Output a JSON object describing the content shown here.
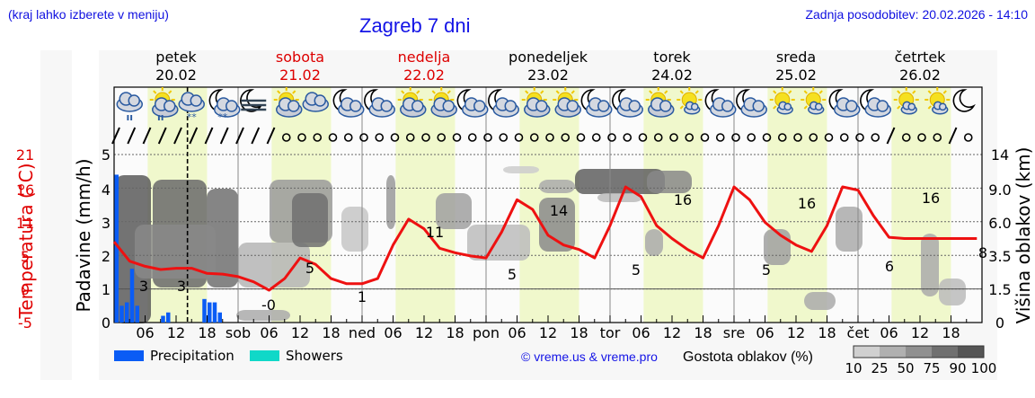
{
  "header": {
    "location_hint": "(kraj lahko izberete v meniju)",
    "title": "Zagreb 7 dni",
    "last_update": "Zadnja posodobitev: 20.02.2026 - 14:10"
  },
  "days": [
    {
      "name": "petek",
      "date": "20.02",
      "abbr": "",
      "weekend": false
    },
    {
      "name": "sobota",
      "date": "21.02",
      "abbr": "sob",
      "weekend": true
    },
    {
      "name": "nedelja",
      "date": "22.02",
      "abbr": "ned",
      "weekend": true
    },
    {
      "name": "ponedeljek",
      "date": "23.02",
      "abbr": "pon",
      "weekend": false
    },
    {
      "name": "torek",
      "date": "24.02",
      "abbr": "tor",
      "weekend": false
    },
    {
      "name": "sreda",
      "date": "25.02",
      "abbr": "sre",
      "weekend": false
    },
    {
      "name": "četrtek",
      "date": "26.02",
      "abbr": "čet",
      "weekend": false
    }
  ],
  "icons_per_day": [
    [
      "cloud-rain-icon",
      "sun-cloud-rain-icon",
      "cloud-snow-icon",
      "moon-cloud-snow-icon"
    ],
    [
      "moon-fog-icon",
      "sun-cloud-icon",
      "cloud-icon",
      "moon-cloud-icon"
    ],
    [
      "moon-cloud-icon",
      "sun-cloud-icon",
      "sun-cloud-icon",
      "moon-cloud-icon"
    ],
    [
      "moon-cloud-icon",
      "sun-cloud-icon",
      "sun-cloud-icon",
      "moon-cloud-icon"
    ],
    [
      "moon-cloud-icon",
      "sun-cloud-icon",
      "sun-small-cloud-icon",
      "moon-cloud-icon"
    ],
    [
      "moon-cloud-icon",
      "sun-small-cloud-icon",
      "sun-small-cloud-icon",
      "moon-cloud-icon"
    ],
    [
      "moon-cloud-icon",
      "sun-small-cloud-icon",
      "sun-small-cloud-icon",
      "moon-icon"
    ]
  ],
  "legend": {
    "precipitation": "Precipitation",
    "showers": "Showers",
    "precipitation_color": "#0a5cf5",
    "showers_color": "#10d8c8",
    "copyright": "© vreme.us & vreme.pro",
    "cloud_density_label": "Gostota oblakov (%)",
    "cloud_scale": [
      "10",
      "25",
      "50",
      "75",
      "90",
      "100"
    ],
    "cloud_colors": [
      "#d0d0d0",
      "#b0b0b0",
      "#909090",
      "#707070",
      "#555555"
    ]
  },
  "colors": {
    "temperature": "#ee1111",
    "daylight": "#f0f8cc",
    "weekend_text": "#dd0000",
    "link_blue": "#1414e6"
  },
  "chart_data": {
    "type": "line",
    "title": "Zagreb 7 dni",
    "xlabel": "",
    "x_tick_labels": [
      "06",
      "12",
      "18",
      "sob",
      "06",
      "12",
      "18",
      "ned",
      "06",
      "12",
      "18",
      "pon",
      "06",
      "12",
      "18",
      "tor",
      "06",
      "12",
      "18",
      "sre",
      "06",
      "12",
      "18",
      "čet",
      "06",
      "12",
      "18"
    ],
    "ylabel_left_outer": "Temperatura (°C)",
    "ylabel_left_inner": "Padavine (mm/h)",
    "ylabel_right": "Višina oblakov (km)",
    "temp_ticks": [
      "21",
      "16",
      "11",
      "5",
      "0",
      "-5"
    ],
    "precip_ticks": [
      "5",
      "4",
      "3",
      "2",
      "1",
      "0"
    ],
    "cloud_height_ticks": [
      "14",
      "9.0",
      "6.0",
      "3.5",
      "1.5",
      "0"
    ],
    "ylim_precip": [
      0,
      5
    ],
    "ylim_temp": [
      -5,
      21
    ],
    "current_time_marker": "20.02 14:10",
    "series": [
      {
        "name": "Temperature",
        "unit": "°C",
        "hours": [
          0,
          3,
          6,
          9,
          12,
          15,
          18,
          21,
          24,
          27,
          30,
          33,
          36,
          39,
          42,
          45,
          48,
          51,
          54,
          57,
          60,
          63,
          66,
          69,
          72,
          75,
          78,
          81,
          84,
          87,
          90,
          93,
          96,
          99,
          102,
          105,
          108,
          111,
          114,
          117,
          120,
          123,
          126,
          129,
          132,
          135,
          138,
          141,
          144,
          147,
          150,
          153,
          156,
          159,
          162,
          165,
          167
        ],
        "values": [
          7.5,
          4.5,
          3.7,
          3.2,
          3.4,
          3.4,
          2.6,
          2.5,
          2.1,
          1.3,
          0.0,
          1.8,
          5.0,
          4.0,
          1.8,
          1.0,
          1.0,
          1.8,
          7.0,
          11.0,
          9.5,
          6.5,
          5.8,
          5.3,
          5.0,
          9.0,
          14.0,
          12.5,
          8.5,
          7.0,
          6.3,
          5.0,
          10.0,
          16.0,
          14.5,
          10.0,
          8.0,
          6.3,
          5.0,
          10.0,
          16.0,
          14.0,
          10.5,
          8.5,
          7.0,
          6.0,
          10.0,
          16.0,
          15.5,
          11.5,
          8.2,
          8.0,
          8.0,
          8.0,
          8.0,
          8.0,
          8.0
        ],
        "labels": [
          {
            "hour": 9,
            "text": "3"
          },
          {
            "hour": 17,
            "text": "3"
          },
          {
            "hour": 30,
            "text": "-0"
          },
          {
            "hour": 37,
            "text": "5"
          },
          {
            "hour": 49,
            "text": "1"
          },
          {
            "hour": 58,
            "text": "11"
          },
          {
            "hour": 75,
            "text": "5"
          },
          {
            "hour": 79,
            "text": "14"
          },
          {
            "hour": 99,
            "text": "5"
          },
          {
            "hour": 103,
            "text": "16"
          },
          {
            "hour": 123,
            "text": "5"
          },
          {
            "hour": 127,
            "text": "16"
          },
          {
            "hour": 147,
            "text": "6"
          },
          {
            "hour": 151,
            "text": "16"
          },
          {
            "hour": 167,
            "text": "8"
          }
        ]
      },
      {
        "name": "Precipitation",
        "unit": "mm/h",
        "hours": [
          0,
          1,
          2,
          3,
          4,
          5,
          9,
          10,
          17,
          18,
          19,
          20,
          21
        ],
        "values": [
          4.4,
          0.5,
          0.6,
          1.6,
          0.5,
          0.0,
          0.2,
          0.3,
          0.7,
          0.6,
          0.6,
          0.3,
          0.0
        ]
      },
      {
        "name": "Showers",
        "unit": "mm/h",
        "hours": [],
        "values": []
      }
    ]
  }
}
